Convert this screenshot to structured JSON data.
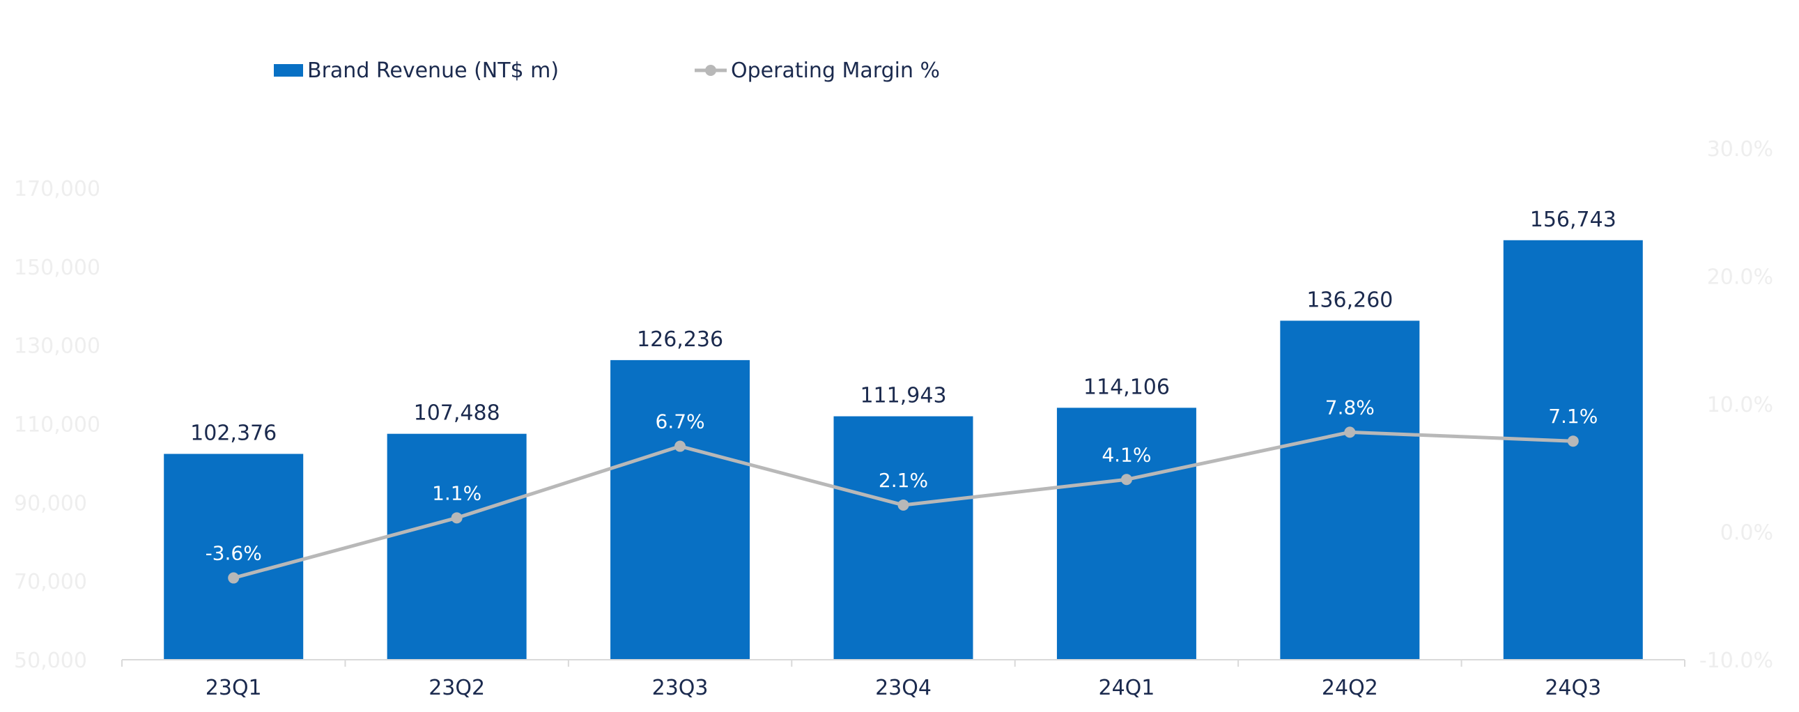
{
  "chart_data": {
    "type": "bar",
    "categories": [
      "23Q1",
      "23Q2",
      "23Q3",
      "23Q4",
      "24Q1",
      "24Q2",
      "24Q3"
    ],
    "series": [
      {
        "name": "Brand Revenue (NT$ m)",
        "type": "bar",
        "axis": "left",
        "values": [
          102376,
          107488,
          126236,
          111943,
          114106,
          136260,
          156743
        ],
        "labels": [
          "102,376",
          "107,488",
          "126,236",
          "111,943",
          "114,106",
          "136,260",
          "156,743"
        ]
      },
      {
        "name": "Operating Margin %",
        "type": "line",
        "axis": "right",
        "values": [
          -3.6,
          1.1,
          6.7,
          2.1,
          4.1,
          7.8,
          7.1
        ],
        "labels": [
          "-3.6%",
          "1.1%",
          "6.7%",
          "2.1%",
          "4.1%",
          "7.8%",
          "7.1%"
        ]
      }
    ],
    "ylim": [
      50000,
      170000
    ],
    "yticks": [
      50000,
      70000,
      90000,
      110000,
      130000,
      150000,
      170000
    ],
    "ytick_labels": [
      "50,000",
      "70,000",
      "90,000",
      "110,000",
      "130,000",
      "150,000",
      "170,000"
    ],
    "y2lim": [
      -10,
      30
    ],
    "y2ticks": [
      -10,
      0,
      10,
      20,
      30
    ],
    "y2tick_labels": [
      "-10.0%",
      "0.0%",
      "10.0%",
      "20.0%",
      "30.0%"
    ],
    "legend_position": "top-left",
    "grid": false,
    "colors": {
      "bar": "#0870c4",
      "line": "#b8b8b8",
      "axis_line": "#d9d9d9",
      "tick_text": "#1b2a4e",
      "faint_tick_text": "#eeeeee"
    }
  }
}
